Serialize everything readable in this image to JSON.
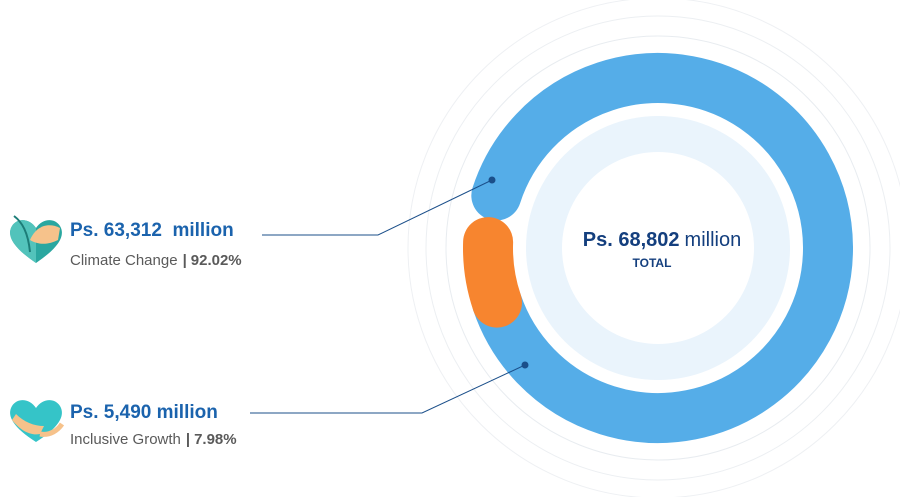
{
  "chart_data": {
    "type": "donut",
    "categories": [
      "Climate Change",
      "Inclusive Growth"
    ],
    "values": [
      92.02,
      7.98
    ],
    "value_labels": [
      "92.02%",
      "7.98%"
    ],
    "amount_labels": [
      "Ps. 63,312  million",
      "Ps. 5,490 million"
    ],
    "separator": "|",
    "colors": [
      "#55ade8",
      "#f7852f"
    ],
    "total": "Ps. 68,802",
    "total_unit": "million",
    "total_caption": "TOTAL"
  }
}
